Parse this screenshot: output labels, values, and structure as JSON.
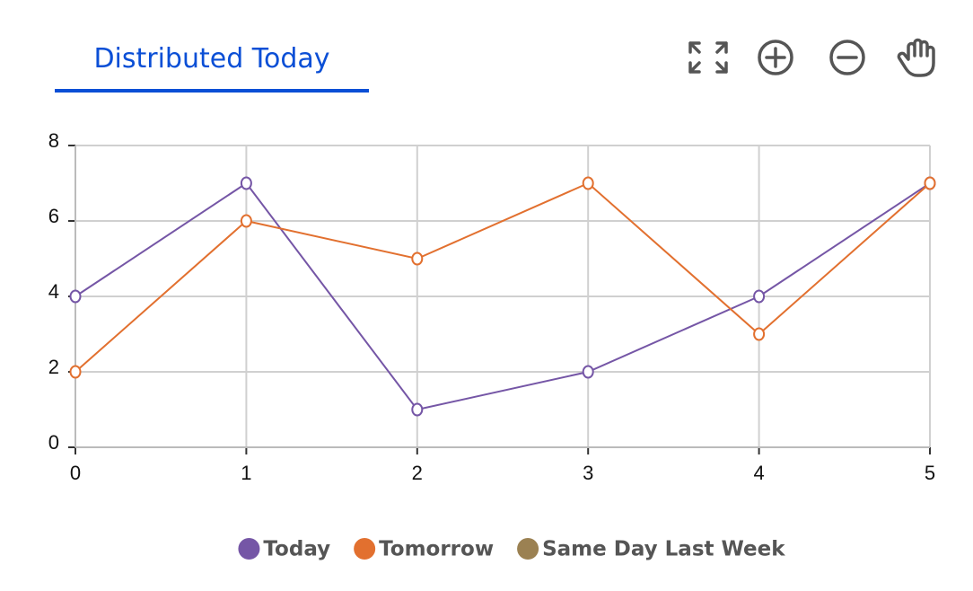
{
  "tab": {
    "title": "Distributed Today"
  },
  "chart_data": {
    "type": "line",
    "x": [
      0,
      1,
      2,
      3,
      4,
      5
    ],
    "series": [
      {
        "name": "Today",
        "color": "#7556a6",
        "values": [
          4,
          7,
          1,
          2,
          4,
          7
        ]
      },
      {
        "name": "Tomorrow",
        "color": "#e2702f",
        "values": [
          2,
          6,
          5,
          7,
          3,
          7
        ]
      },
      {
        "name": "Same Day Last Week",
        "color": "#9b8152",
        "values": [
          null,
          null,
          null,
          null,
          null,
          null
        ]
      }
    ],
    "xlim": [
      0,
      5
    ],
    "xticks": [
      0,
      1,
      2,
      3,
      4,
      5
    ],
    "ylim": [
      0,
      8
    ],
    "yticks": [
      0,
      2,
      4,
      6,
      8
    ],
    "grid": true,
    "legend": "bottom"
  }
}
